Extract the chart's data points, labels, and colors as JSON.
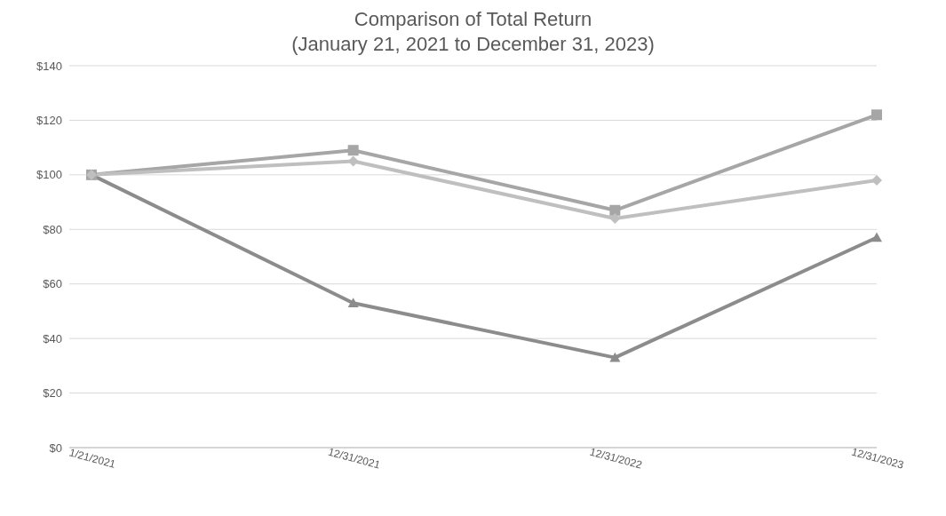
{
  "chart_data": {
    "type": "line",
    "title": "Comparison of Total Return",
    "subtitle": "(January 21, 2021 to December 31, 2023)",
    "categories": [
      "1/21/2021",
      "12/31/2021",
      "12/31/2022",
      "12/31/2023"
    ],
    "series": [
      {
        "color": "#8c8c8c",
        "marker": "triangle",
        "values": [
          100,
          53,
          33,
          77
        ]
      },
      {
        "color": "#a6a6a6",
        "marker": "square",
        "values": [
          100,
          109,
          87,
          122
        ]
      },
      {
        "color": "#bfbfbf",
        "marker": "diamond",
        "values": [
          100,
          105,
          84,
          98
        ]
      }
    ],
    "ylim": [
      0,
      140
    ],
    "yticks": [
      {
        "value": 0,
        "label": "$0"
      },
      {
        "value": 20,
        "label": "$20"
      },
      {
        "value": 40,
        "label": "$40"
      },
      {
        "value": 60,
        "label": "$60"
      },
      {
        "value": 80,
        "label": "$80"
      },
      {
        "value": 100,
        "label": "$100"
      },
      {
        "value": 120,
        "label": "$120"
      },
      {
        "value": 140,
        "label": "$140"
      }
    ],
    "grid": "y",
    "line_style": "solid"
  }
}
